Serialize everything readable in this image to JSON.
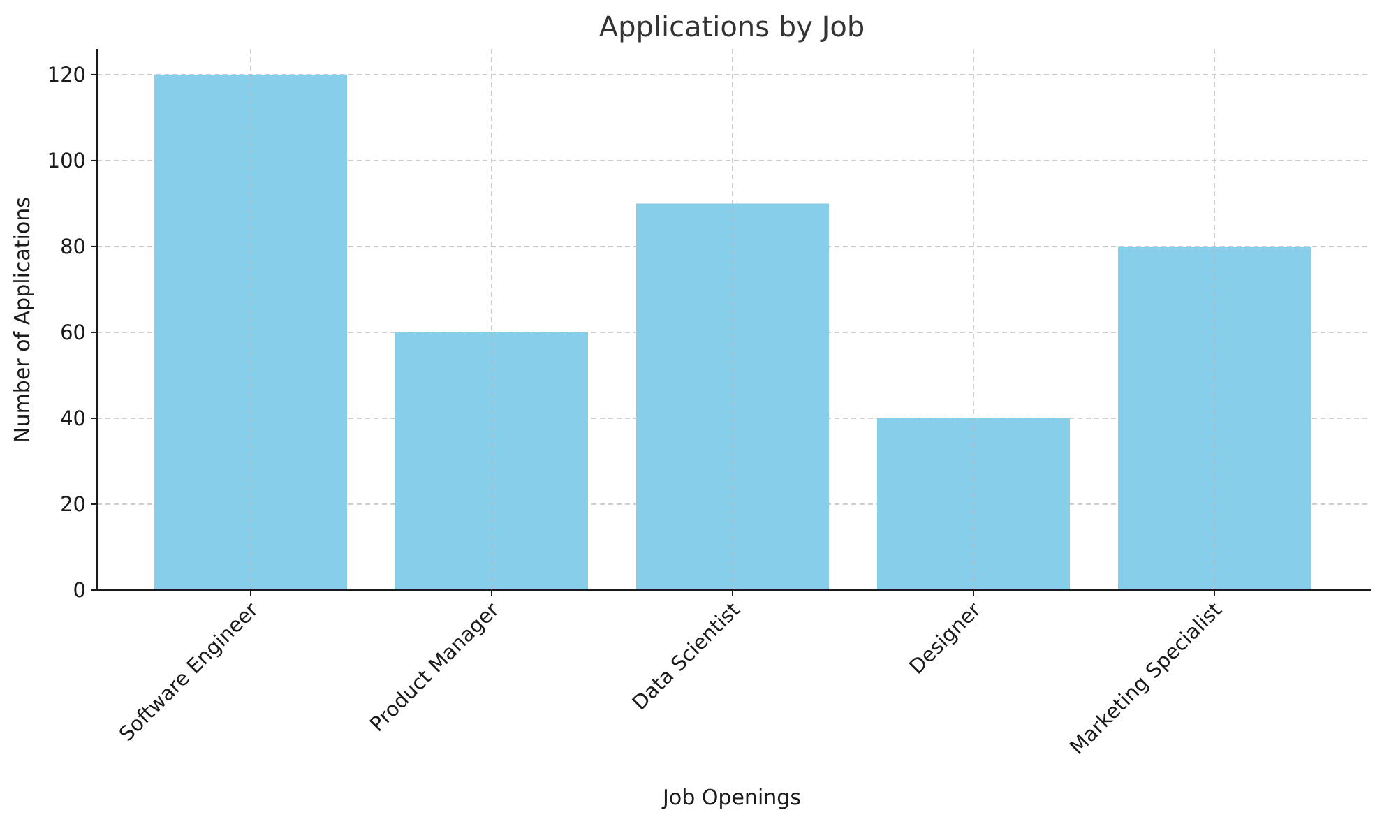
{
  "chart_data": {
    "type": "bar",
    "title": "Applications by Job",
    "xlabel": "Job Openings",
    "ylabel": "Number of Applications",
    "categories": [
      "Software Engineer",
      "Product Manager",
      "Data Scientist",
      "Designer",
      "Marketing Specialist"
    ],
    "values": [
      120,
      60,
      90,
      40,
      80
    ],
    "ylim": [
      0,
      126
    ],
    "yticks": [
      0,
      20,
      40,
      60,
      80,
      100,
      120
    ],
    "ytick_labels": [
      "0",
      "20",
      "40",
      "60",
      "80",
      "100",
      "120"
    ],
    "grid": true,
    "x_tick_rotation_deg": 45,
    "colors": {
      "bar": "#87CEEB",
      "grid": "#b8b8b8",
      "axis": "#1a1a1a",
      "title": "#333333"
    }
  }
}
